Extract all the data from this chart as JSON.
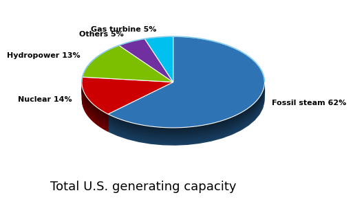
{
  "slices": [
    {
      "label": "Fossil steam 62%",
      "value": 62,
      "color": "#2E74B5"
    },
    {
      "label": "Nuclear 14%",
      "value": 14,
      "color": "#CC0000"
    },
    {
      "label": "Hydropower 13%",
      "value": 13,
      "color": "#7CBF00"
    },
    {
      "label": "Others 5%",
      "value": 5,
      "color": "#7030A0"
    },
    {
      "label": "Gas turbine 5%",
      "value": 5,
      "color": "#00C0F0"
    }
  ],
  "title": "Total U.S. generating capacity",
  "title_fontsize": 13,
  "shadow_color": "#1A4F80",
  "shadow_color2": "#0D2D4A",
  "background_color": "#FFFFFF",
  "startangle": 90,
  "label_fontsize": 8.0,
  "yscale": 0.5,
  "depth": 28,
  "depth_step": 0.008
}
